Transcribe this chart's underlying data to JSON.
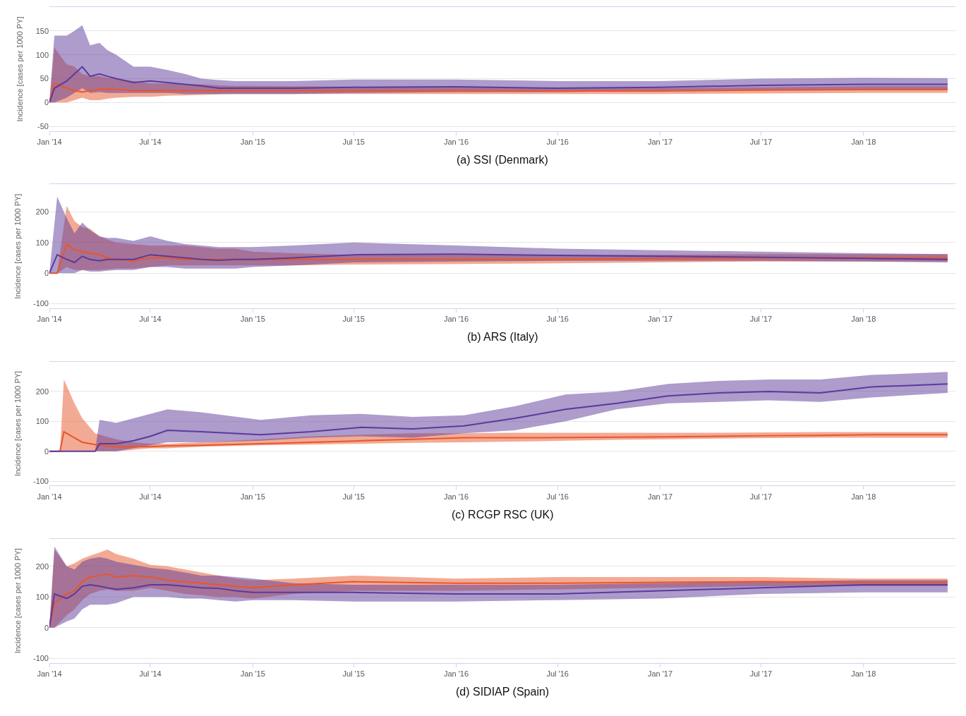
{
  "chart_data": [
    {
      "type": "line",
      "title": "(a) SSI (Denmark)",
      "ylabel": "Incidence [cases per 1000 PY]",
      "grid": "y",
      "x": [
        "2014-01-01",
        "2014-01-10",
        "2014-02-01",
        "2014-02-15",
        "2014-03-01",
        "2014-03-15",
        "2014-04-01",
        "2014-04-15",
        "2014-05-01",
        "2014-06-01",
        "2014-07-01",
        "2014-08-01",
        "2014-09-01",
        "2014-10-01",
        "2014-11-01",
        "2014-12-01",
        "2015-01-01",
        "2015-03-15",
        "2015-07-01",
        "2016-01-01",
        "2016-07-01",
        "2017-01-01",
        "2017-07-01",
        "2018-01-01",
        "2018-06-01"
      ],
      "series": [
        {
          "color": "#e8562a",
          "values": [
            0,
            40,
            30,
            25,
            22,
            25,
            28,
            28,
            28,
            25,
            25,
            25,
            25,
            25,
            25,
            25,
            25,
            25,
            25,
            25,
            24,
            24,
            26,
            27,
            27
          ],
          "lower": [
            0,
            0,
            0,
            5,
            10,
            5,
            5,
            8,
            10,
            12,
            12,
            14,
            15,
            16,
            17,
            18,
            18,
            18,
            18,
            18,
            18,
            18,
            19,
            20,
            20
          ],
          "upper": [
            0,
            115,
            80,
            75,
            60,
            55,
            55,
            52,
            50,
            45,
            40,
            40,
            38,
            38,
            36,
            35,
            35,
            34,
            33,
            32,
            30,
            30,
            32,
            34,
            34
          ]
        },
        {
          "color": "#5b3a9a",
          "values": [
            0,
            30,
            45,
            60,
            75,
            55,
            60,
            55,
            50,
            42,
            45,
            42,
            38,
            35,
            30,
            30,
            30,
            30,
            32,
            33,
            30,
            32,
            36,
            38,
            38
          ],
          "lower": [
            0,
            0,
            10,
            20,
            30,
            20,
            22,
            20,
            20,
            20,
            20,
            20,
            18,
            18,
            18,
            18,
            18,
            18,
            20,
            22,
            22,
            24,
            26,
            28,
            28
          ],
          "upper": [
            0,
            140,
            140,
            150,
            162,
            120,
            125,
            110,
            100,
            75,
            75,
            68,
            60,
            50,
            47,
            45,
            45,
            45,
            48,
            48,
            45,
            45,
            50,
            52,
            51
          ]
        }
      ],
      "xlim": [
        "2014-01-01",
        "2018-06-15"
      ],
      "ylim": [
        -60,
        200
      ],
      "yticks": [
        -50,
        0,
        50,
        100,
        150
      ],
      "xticks": [
        {
          "value": "2014-01-01",
          "label": "Jan '14"
        },
        {
          "value": "2014-07-01",
          "label": "Jul '14"
        },
        {
          "value": "2015-01-01",
          "label": "Jan '15"
        },
        {
          "value": "2015-07-01",
          "label": "Jul '15"
        },
        {
          "value": "2016-01-01",
          "label": "Jan '16"
        },
        {
          "value": "2016-07-01",
          "label": "Jul '16"
        },
        {
          "value": "2017-01-01",
          "label": "Jan '17"
        },
        {
          "value": "2017-07-01",
          "label": "Jul '17"
        },
        {
          "value": "2018-01-01",
          "label": "Jan '18"
        }
      ]
    },
    {
      "type": "line",
      "title": "(b) ARS (Italy)",
      "ylabel": "Incidence [cases per 1000 PY]",
      "grid": "y",
      "x": [
        "2014-01-01",
        "2014-01-15",
        "2014-02-01",
        "2014-02-15",
        "2014-03-01",
        "2014-03-15",
        "2014-04-01",
        "2014-04-15",
        "2014-05-01",
        "2014-06-01",
        "2014-07-01",
        "2014-08-01",
        "2014-09-01",
        "2014-10-01",
        "2014-11-01",
        "2014-12-01",
        "2015-01-01",
        "2015-03-15",
        "2015-07-01",
        "2016-01-01",
        "2016-07-01",
        "2017-01-01",
        "2017-07-01",
        "2018-01-01",
        "2018-06-01"
      ],
      "series": [
        {
          "color": "#e8562a",
          "values": [
            0,
            0,
            95,
            75,
            70,
            65,
            60,
            50,
            45,
            40,
            50,
            50,
            45,
            45,
            45,
            45,
            45,
            45,
            45,
            45,
            45,
            48,
            50,
            50,
            50
          ],
          "lower": [
            0,
            0,
            20,
            10,
            10,
            10,
            10,
            12,
            15,
            15,
            20,
            25,
            25,
            25,
            25,
            25,
            25,
            25,
            28,
            30,
            32,
            35,
            38,
            38,
            38
          ],
          "upper": [
            0,
            0,
            220,
            170,
            150,
            145,
            120,
            110,
            100,
            95,
            90,
            90,
            90,
            85,
            80,
            80,
            70,
            65,
            60,
            60,
            60,
            60,
            62,
            62,
            62
          ]
        },
        {
          "color": "#5b3a9a",
          "values": [
            0,
            60,
            45,
            35,
            55,
            45,
            40,
            45,
            45,
            45,
            60,
            55,
            50,
            45,
            42,
            45,
            45,
            50,
            60,
            62,
            58,
            55,
            52,
            48,
            45
          ],
          "lower": [
            0,
            0,
            0,
            0,
            10,
            5,
            5,
            8,
            10,
            10,
            20,
            20,
            15,
            15,
            15,
            15,
            20,
            25,
            35,
            38,
            40,
            40,
            40,
            38,
            35
          ],
          "upper": [
            0,
            250,
            180,
            130,
            165,
            140,
            120,
            115,
            115,
            105,
            120,
            105,
            95,
            90,
            85,
            85,
            85,
            90,
            100,
            90,
            80,
            75,
            70,
            65,
            62
          ]
        }
      ],
      "xlim": [
        "2014-01-01",
        "2018-06-15"
      ],
      "ylim": [
        -115,
        290
      ],
      "yticks": [
        -100,
        0,
        100,
        200
      ],
      "xticks": [
        {
          "value": "2014-01-01",
          "label": "Jan '14"
        },
        {
          "value": "2014-07-01",
          "label": "Jul '14"
        },
        {
          "value": "2015-01-01",
          "label": "Jan '15"
        },
        {
          "value": "2015-07-01",
          "label": "Jul '15"
        },
        {
          "value": "2016-01-01",
          "label": "Jan '16"
        },
        {
          "value": "2016-07-01",
          "label": "Jul '16"
        },
        {
          "value": "2017-01-01",
          "label": "Jan '17"
        },
        {
          "value": "2017-07-01",
          "label": "Jul '17"
        },
        {
          "value": "2018-01-01",
          "label": "Jan '18"
        }
      ]
    },
    {
      "type": "line",
      "title": "(c) RCGP RSC (UK)",
      "ylabel": "Incidence [cases per 1000 PY]",
      "grid": "y",
      "x": [
        "2014-01-01",
        "2014-01-20",
        "2014-01-27",
        "2014-02-15",
        "2014-03-01",
        "2014-03-24",
        "2014-04-01",
        "2014-05-01",
        "2014-06-01",
        "2014-07-01",
        "2014-08-01",
        "2014-10-01",
        "2015-01-15",
        "2015-04-15",
        "2015-07-15",
        "2015-10-15",
        "2016-01-15",
        "2016-04-15",
        "2016-07-15",
        "2016-10-15",
        "2017-01-15",
        "2017-04-15",
        "2017-07-15",
        "2017-10-15",
        "2018-01-15",
        "2018-06-01"
      ],
      "series": [
        {
          "color": "#e8562a",
          "values": [
            0,
            0,
            65,
            45,
            30,
            22,
            20,
            15,
            15,
            15,
            18,
            20,
            25,
            30,
            35,
            40,
            45,
            45,
            46,
            47,
            48,
            50,
            52,
            53,
            55,
            55
          ],
          "lower": [
            0,
            0,
            0,
            0,
            0,
            0,
            0,
            0,
            5,
            10,
            10,
            15,
            20,
            22,
            25,
            28,
            30,
            32,
            35,
            38,
            40,
            42,
            44,
            45,
            45,
            45
          ],
          "upper": [
            0,
            0,
            240,
            160,
            110,
            60,
            55,
            40,
            30,
            25,
            25,
            30,
            40,
            50,
            55,
            60,
            60,
            62,
            62,
            62,
            62,
            62,
            63,
            64,
            64,
            64
          ]
        },
        {
          "color": "#5b3a9a",
          "values": [
            0,
            0,
            0,
            0,
            0,
            0,
            25,
            25,
            35,
            50,
            70,
            65,
            55,
            65,
            80,
            75,
            85,
            110,
            140,
            160,
            185,
            195,
            200,
            195,
            215,
            225
          ],
          "lower": [
            0,
            0,
            0,
            0,
            0,
            0,
            0,
            0,
            10,
            20,
            30,
            30,
            35,
            45,
            50,
            45,
            60,
            70,
            100,
            140,
            160,
            165,
            170,
            165,
            180,
            195
          ],
          "upper": [
            0,
            0,
            0,
            0,
            0,
            0,
            105,
            95,
            110,
            125,
            140,
            130,
            105,
            120,
            125,
            115,
            120,
            150,
            190,
            200,
            225,
            235,
            240,
            240,
            255,
            265
          ]
        }
      ],
      "xlim": [
        "2014-01-01",
        "2018-06-15"
      ],
      "ylim": [
        -115,
        300
      ],
      "yticks": [
        -100,
        0,
        100,
        200
      ],
      "xticks": [
        {
          "value": "2014-01-01",
          "label": "Jan '14"
        },
        {
          "value": "2014-07-01",
          "label": "Jul '14"
        },
        {
          "value": "2015-01-01",
          "label": "Jan '15"
        },
        {
          "value": "2015-07-01",
          "label": "Jul '15"
        },
        {
          "value": "2016-01-01",
          "label": "Jan '16"
        },
        {
          "value": "2016-07-01",
          "label": "Jul '16"
        },
        {
          "value": "2017-01-01",
          "label": "Jan '17"
        },
        {
          "value": "2017-07-01",
          "label": "Jul '17"
        },
        {
          "value": "2018-01-01",
          "label": "Jan '18"
        }
      ]
    },
    {
      "type": "line",
      "title": "(d) SIDIAP (Spain)",
      "ylabel": "Incidence [cases per 1000 PY]",
      "grid": "y",
      "x": [
        "2014-01-01",
        "2014-01-10",
        "2014-02-01",
        "2014-02-15",
        "2014-03-01",
        "2014-03-15",
        "2014-04-01",
        "2014-04-15",
        "2014-05-01",
        "2014-06-01",
        "2014-07-01",
        "2014-08-01",
        "2014-09-01",
        "2014-10-01",
        "2014-11-01",
        "2014-12-01",
        "2015-01-01",
        "2015-03-15",
        "2015-07-01",
        "2016-01-01",
        "2016-07-01",
        "2017-01-01",
        "2017-07-01",
        "2018-01-01",
        "2018-06-01"
      ],
      "series": [
        {
          "color": "#e8562a",
          "values": [
            0,
            80,
            110,
            120,
            150,
            165,
            170,
            175,
            165,
            170,
            165,
            155,
            150,
            145,
            140,
            135,
            130,
            140,
            150,
            145,
            145,
            148,
            150,
            148,
            148
          ],
          "lower": [
            0,
            0,
            40,
            60,
            90,
            110,
            120,
            125,
            120,
            120,
            130,
            120,
            110,
            105,
            100,
            100,
            95,
            110,
            120,
            120,
            125,
            130,
            135,
            135,
            135
          ],
          "upper": [
            0,
            255,
            200,
            210,
            225,
            235,
            245,
            255,
            240,
            225,
            205,
            200,
            190,
            180,
            170,
            160,
            155,
            160,
            170,
            160,
            165,
            165,
            165,
            160,
            160
          ]
        },
        {
          "color": "#5b3a9a",
          "values": [
            0,
            110,
            95,
            110,
            135,
            140,
            135,
            130,
            125,
            130,
            140,
            140,
            135,
            130,
            128,
            120,
            115,
            115,
            115,
            110,
            110,
            120,
            130,
            140,
            140
          ],
          "lower": [
            0,
            0,
            20,
            30,
            60,
            75,
            75,
            75,
            80,
            100,
            100,
            100,
            95,
            95,
            90,
            85,
            90,
            90,
            85,
            85,
            90,
            95,
            110,
            115,
            115
          ],
          "upper": [
            0,
            265,
            200,
            190,
            215,
            225,
            230,
            225,
            215,
            205,
            195,
            190,
            180,
            170,
            170,
            165,
            160,
            145,
            140,
            140,
            140,
            145,
            150,
            155,
            155
          ]
        }
      ],
      "xlim": [
        "2014-01-01",
        "2018-06-15"
      ],
      "ylim": [
        -115,
        290
      ],
      "yticks": [
        -100,
        0,
        100,
        200
      ],
      "xticks": [
        {
          "value": "2014-01-01",
          "label": "Jan '14"
        },
        {
          "value": "2014-07-01",
          "label": "Jul '14"
        },
        {
          "value": "2015-01-01",
          "label": "Jan '15"
        },
        {
          "value": "2015-07-01",
          "label": "Jul '15"
        },
        {
          "value": "2016-01-01",
          "label": "Jan '16"
        },
        {
          "value": "2016-07-01",
          "label": "Jul '16"
        },
        {
          "value": "2017-01-01",
          "label": "Jan '17"
        },
        {
          "value": "2017-07-01",
          "label": "Jul '17"
        },
        {
          "value": "2018-01-01",
          "label": "Jan '18"
        }
      ]
    }
  ]
}
